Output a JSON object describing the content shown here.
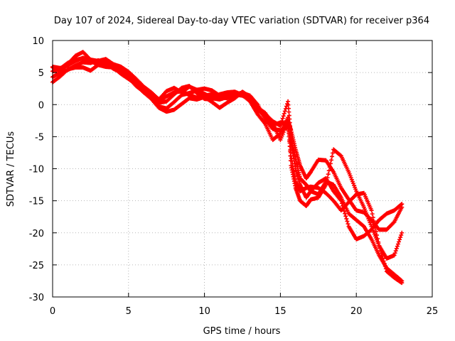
{
  "chart_data": {
    "type": "scatter",
    "title": "Day 107 of 2024, Sidereal Day-to-day VTEC variation (SDTVAR) for receiver p364",
    "xlabel": "GPS time / hours",
    "ylabel": "SDTVAR / TECUs",
    "xlim": [
      0,
      25
    ],
    "ylim": [
      -30,
      10
    ],
    "xticks": [
      0,
      5,
      10,
      15,
      20,
      25
    ],
    "yticks": [
      -30,
      -25,
      -20,
      -15,
      -10,
      -5,
      0,
      5,
      10
    ],
    "xtick_labels": [
      "0",
      "5",
      "10",
      "15",
      "20",
      "25"
    ],
    "ytick_labels": [
      "-30",
      "-25",
      "-20",
      "-15",
      "-10",
      "-5",
      "0",
      "5",
      "10"
    ],
    "grid": true,
    "marker": "+",
    "color": "#ff0000",
    "series": [
      {
        "points": [
          [
            0.0,
            5.8
          ],
          [
            0.5,
            5.2
          ],
          [
            1.0,
            6.3
          ],
          [
            1.5,
            7.6
          ],
          [
            2.0,
            8.2
          ],
          [
            2.5,
            7.0
          ],
          [
            3.0,
            6.8
          ],
          [
            3.5,
            7.1
          ],
          [
            4.0,
            6.3
          ],
          [
            4.5,
            5.9
          ],
          [
            5.0,
            5.1
          ],
          [
            5.5,
            4.0
          ],
          [
            6.0,
            2.8
          ],
          [
            6.5,
            1.9
          ],
          [
            7.0,
            0.8
          ],
          [
            7.5,
            2.1
          ],
          [
            8.0,
            2.6
          ],
          [
            8.5,
            1.9
          ],
          [
            9.0,
            2.8
          ],
          [
            9.5,
            2.3
          ],
          [
            10.0,
            2.5
          ],
          [
            10.5,
            2.2
          ],
          [
            11.0,
            1.4
          ],
          [
            11.5,
            1.5
          ],
          [
            12.0,
            1.2
          ],
          [
            12.5,
            1.8
          ],
          [
            13.0,
            1.4
          ],
          [
            13.5,
            0.0
          ],
          [
            14.0,
            -2.3
          ],
          [
            14.5,
            -3.8
          ],
          [
            15.0,
            -4.0
          ],
          [
            15.5,
            -3.5
          ],
          [
            15.7,
            -6.0
          ],
          [
            16.0,
            -10.0
          ],
          [
            16.3,
            -12.5
          ],
          [
            16.7,
            -14.5
          ],
          [
            17.0,
            -13.5
          ],
          [
            17.5,
            -12.2
          ],
          [
            18.0,
            -11.5
          ],
          [
            18.5,
            -13.5
          ],
          [
            19.0,
            -15.0
          ],
          [
            19.5,
            -19.0
          ],
          [
            20.0,
            -21.0
          ],
          [
            20.5,
            -20.5
          ],
          [
            21.0,
            -19.5
          ],
          [
            21.5,
            -18.0
          ],
          [
            22.0,
            -17.0
          ],
          [
            22.5,
            -16.5
          ],
          [
            23.0,
            -15.5
          ]
        ]
      },
      {
        "points": [
          [
            0.0,
            3.5
          ],
          [
            0.5,
            4.4
          ],
          [
            1.0,
            5.5
          ],
          [
            1.5,
            5.8
          ],
          [
            2.0,
            5.8
          ],
          [
            2.5,
            5.3
          ],
          [
            3.0,
            6.2
          ],
          [
            3.5,
            6.6
          ],
          [
            4.0,
            6.0
          ],
          [
            4.5,
            5.4
          ],
          [
            5.0,
            4.5
          ],
          [
            5.5,
            3.0
          ],
          [
            6.0,
            1.9
          ],
          [
            6.5,
            0.9
          ],
          [
            7.0,
            -0.5
          ],
          [
            7.5,
            -1.1
          ],
          [
            8.0,
            -0.8
          ],
          [
            8.5,
            0.1
          ],
          [
            9.0,
            1.0
          ],
          [
            9.5,
            0.8
          ],
          [
            10.0,
            1.2
          ],
          [
            10.5,
            0.4
          ],
          [
            11.0,
            -0.5
          ],
          [
            11.5,
            0.3
          ],
          [
            12.0,
            1.0
          ],
          [
            12.5,
            2.0
          ],
          [
            13.0,
            1.2
          ],
          [
            13.5,
            -0.5
          ],
          [
            14.0,
            -1.3
          ],
          [
            14.5,
            -3.0
          ],
          [
            15.0,
            -5.5
          ],
          [
            15.5,
            -2.5
          ],
          [
            15.7,
            -4.0
          ],
          [
            16.0,
            -7.0
          ],
          [
            16.3,
            -9.5
          ],
          [
            16.7,
            -11.5
          ],
          [
            17.0,
            -10.5
          ],
          [
            17.5,
            -8.6
          ],
          [
            18.0,
            -8.7
          ],
          [
            18.5,
            -10.5
          ],
          [
            19.0,
            -13.0
          ],
          [
            19.5,
            -14.8
          ],
          [
            20.0,
            -16.5
          ],
          [
            20.5,
            -16.8
          ],
          [
            21.0,
            -18.0
          ],
          [
            21.5,
            -19.5
          ],
          [
            22.0,
            -19.5
          ],
          [
            22.5,
            -18.3
          ],
          [
            23.0,
            -16.0
          ]
        ]
      },
      {
        "points": [
          [
            0.0,
            5.2
          ],
          [
            0.5,
            5.6
          ],
          [
            1.0,
            6.5
          ],
          [
            1.5,
            7.0
          ],
          [
            2.0,
            7.2
          ],
          [
            2.5,
            6.8
          ],
          [
            3.0,
            6.2
          ],
          [
            3.5,
            5.9
          ],
          [
            4.0,
            5.8
          ],
          [
            4.5,
            4.8
          ],
          [
            5.0,
            4.0
          ],
          [
            5.5,
            3.2
          ],
          [
            6.0,
            2.3
          ],
          [
            6.5,
            1.2
          ],
          [
            7.0,
            0.3
          ],
          [
            7.5,
            0.5
          ],
          [
            8.0,
            1.6
          ],
          [
            8.5,
            2.6
          ],
          [
            9.0,
            2.9
          ],
          [
            9.5,
            1.8
          ],
          [
            10.0,
            0.9
          ],
          [
            10.5,
            0.8
          ],
          [
            11.0,
            1.6
          ],
          [
            11.5,
            1.9
          ],
          [
            12.0,
            2.0
          ],
          [
            12.5,
            1.5
          ],
          [
            13.0,
            0.5
          ],
          [
            13.5,
            -1.5
          ],
          [
            14.0,
            -3.0
          ],
          [
            14.5,
            -5.5
          ],
          [
            15.0,
            -4.5
          ],
          [
            15.5,
            -2.0
          ],
          [
            15.7,
            -9.5
          ],
          [
            16.0,
            -13.0
          ],
          [
            16.3,
            -15.0
          ],
          [
            16.7,
            -15.8
          ],
          [
            17.0,
            -14.8
          ],
          [
            17.5,
            -14.5
          ],
          [
            18.0,
            -12.5
          ],
          [
            18.5,
            -7.0
          ],
          [
            19.0,
            -8.0
          ],
          [
            19.5,
            -10.5
          ],
          [
            20.0,
            -13.5
          ],
          [
            20.5,
            -16.0
          ],
          [
            21.0,
            -19.0
          ],
          [
            21.5,
            -22.0
          ],
          [
            22.0,
            -24.0
          ],
          [
            22.5,
            -23.5
          ],
          [
            23.0,
            -20.0
          ]
        ]
      },
      {
        "points": [
          [
            0.0,
            4.3
          ],
          [
            0.5,
            5.0
          ],
          [
            1.0,
            5.4
          ],
          [
            1.5,
            6.1
          ],
          [
            2.0,
            6.6
          ],
          [
            2.5,
            6.5
          ],
          [
            3.0,
            6.9
          ],
          [
            3.5,
            6.4
          ],
          [
            4.0,
            5.6
          ],
          [
            4.5,
            5.0
          ],
          [
            5.0,
            4.2
          ],
          [
            5.5,
            2.9
          ],
          [
            6.0,
            2.0
          ],
          [
            6.5,
            1.0
          ],
          [
            7.0,
            -0.3
          ],
          [
            7.5,
            -0.6
          ],
          [
            8.0,
            0.4
          ],
          [
            8.5,
            1.5
          ],
          [
            9.0,
            1.8
          ],
          [
            9.5,
            2.2
          ],
          [
            10.0,
            1.7
          ],
          [
            10.5,
            1.0
          ],
          [
            11.0,
            0.8
          ],
          [
            11.5,
            1.2
          ],
          [
            12.0,
            1.6
          ],
          [
            12.5,
            1.4
          ],
          [
            13.0,
            0.8
          ],
          [
            13.5,
            -0.8
          ],
          [
            14.0,
            -1.8
          ],
          [
            14.5,
            -3.2
          ],
          [
            15.0,
            -2.8
          ],
          [
            15.5,
            -3.0
          ],
          [
            15.7,
            -8.0
          ],
          [
            16.0,
            -12.0
          ],
          [
            16.3,
            -13.5
          ],
          [
            16.7,
            -13.0
          ],
          [
            17.0,
            -12.8
          ],
          [
            17.5,
            -13.0
          ],
          [
            18.0,
            -13.8
          ],
          [
            18.5,
            -15.0
          ],
          [
            19.0,
            -16.5
          ],
          [
            19.5,
            -15.2
          ],
          [
            20.0,
            -14.0
          ],
          [
            20.5,
            -13.8
          ],
          [
            21.0,
            -16.5
          ],
          [
            21.5,
            -22.0
          ],
          [
            22.0,
            -26.0
          ],
          [
            22.5,
            -27.0
          ],
          [
            23.0,
            -27.8
          ]
        ]
      },
      {
        "points": [
          [
            0.0,
            5.9
          ],
          [
            0.5,
            5.7
          ],
          [
            1.0,
            6.1
          ],
          [
            1.5,
            6.8
          ],
          [
            2.0,
            7.3
          ],
          [
            2.5,
            6.9
          ],
          [
            3.0,
            6.5
          ],
          [
            3.5,
            6.7
          ],
          [
            4.0,
            6.1
          ],
          [
            4.5,
            5.3
          ],
          [
            5.0,
            4.6
          ],
          [
            5.5,
            3.5
          ],
          [
            6.0,
            2.4
          ],
          [
            6.5,
            1.4
          ],
          [
            7.0,
            0.6
          ],
          [
            7.5,
            1.3
          ],
          [
            8.0,
            1.9
          ],
          [
            8.5,
            2.1
          ],
          [
            9.0,
            1.5
          ],
          [
            9.5,
            1.1
          ],
          [
            10.0,
            1.4
          ],
          [
            10.5,
            1.6
          ],
          [
            11.0,
            1.1
          ],
          [
            11.5,
            1.0
          ],
          [
            12.0,
            1.5
          ],
          [
            12.5,
            1.9
          ],
          [
            13.0,
            1.0
          ],
          [
            13.5,
            -0.3
          ],
          [
            14.0,
            -1.5
          ],
          [
            14.5,
            -2.6
          ],
          [
            15.0,
            -3.3
          ],
          [
            15.5,
            0.5
          ],
          [
            15.7,
            -5.0
          ],
          [
            16.0,
            -8.5
          ],
          [
            16.3,
            -11.5
          ],
          [
            16.7,
            -12.5
          ],
          [
            17.0,
            -13.5
          ],
          [
            17.5,
            -14.0
          ],
          [
            18.0,
            -12.0
          ],
          [
            18.5,
            -12.5
          ],
          [
            19.0,
            -14.5
          ],
          [
            19.5,
            -17.0
          ],
          [
            20.0,
            -18.0
          ],
          [
            20.5,
            -19.0
          ],
          [
            21.0,
            -21.0
          ],
          [
            21.5,
            -23.5
          ],
          [
            22.0,
            -25.5
          ],
          [
            22.5,
            -26.5
          ],
          [
            23.0,
            -27.5
          ]
        ]
      }
    ]
  }
}
